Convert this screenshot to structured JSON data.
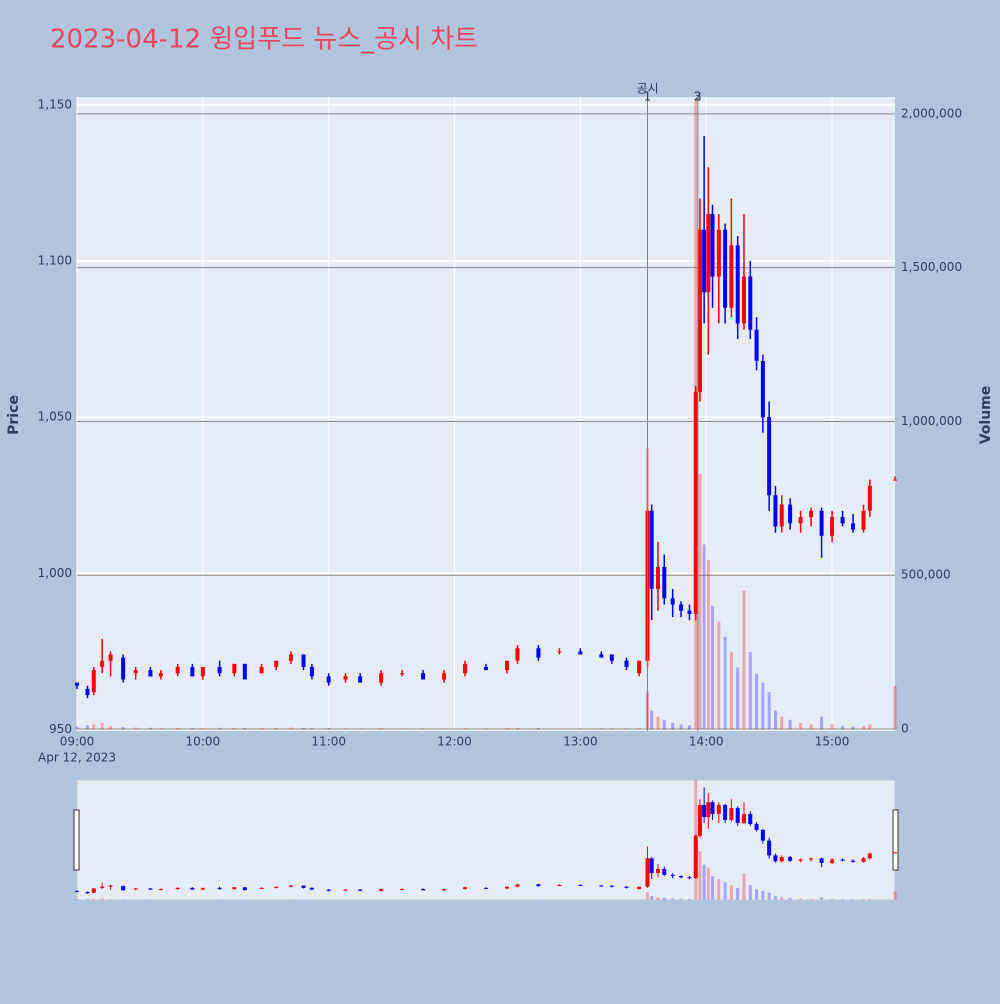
{
  "chart_data": {
    "type": "candlestick",
    "title": "2023-04-12 윙입푸드 뉴스_공시 차트",
    "y_label": "Price",
    "y2_label": "Volume",
    "x_date_label": "Apr 12, 2023",
    "increasing_color": "#ff0000",
    "decreasing_color": "#0000ff",
    "xlim": [
      "09:00",
      "15:30"
    ],
    "xticks": [
      "09:00",
      "10:00",
      "11:00",
      "12:00",
      "13:00",
      "14:00",
      "15:00"
    ],
    "ylim": [
      949.5,
      1152.5
    ],
    "yticks": [
      950,
      {
        "value": 1000,
        "label": "1,000"
      },
      {
        "value": 1050,
        "label": "1,050"
      },
      {
        "value": 1100,
        "label": "1,100"
      },
      {
        "value": 1150,
        "label": "1,150"
      }
    ],
    "y2lim": [
      -6500,
      2055000
    ],
    "y2ticks": [
      0,
      {
        "value": 500000,
        "label": "500,000"
      },
      {
        "value": 1000000,
        "label": "1,000,000"
      },
      {
        "value": 1500000,
        "label": "1,500,000"
      },
      {
        "value": 2000000,
        "label": "2,000,000"
      }
    ],
    "events": [
      {
        "x": "13:32",
        "label": "공시",
        "numbers": [
          "1"
        ]
      },
      {
        "x": "13:56",
        "numbers": [
          "2",
          "3"
        ]
      }
    ],
    "x": [
      "09:00",
      "09:05",
      "09:08",
      "09:12",
      "09:16",
      "09:22",
      "09:28",
      "09:35",
      "09:40",
      "09:48",
      "09:55",
      "10:00",
      "10:08",
      "10:15",
      "10:20",
      "10:28",
      "10:35",
      "10:42",
      "10:48",
      "10:52",
      "11:00",
      "11:08",
      "11:15",
      "11:25",
      "11:35",
      "11:45",
      "11:55",
      "12:05",
      "12:15",
      "12:25",
      "12:30",
      "12:40",
      "12:50",
      "13:00",
      "13:10",
      "13:15",
      "13:22",
      "13:28",
      "13:32",
      "13:34",
      "13:37",
      "13:40",
      "13:44",
      "13:48",
      "13:52",
      "13:55",
      "13:57",
      "13:59",
      "14:01",
      "14:03",
      "14:06",
      "14:09",
      "14:12",
      "14:15",
      "14:18",
      "14:21",
      "14:24",
      "14:27",
      "14:30",
      "14:33",
      "14:36",
      "14:40",
      "14:45",
      "14:50",
      "14:55",
      "15:00",
      "15:05",
      "15:10",
      "15:15",
      "15:18",
      "15:30"
    ],
    "open": [
      965,
      963,
      962,
      970,
      972,
      973,
      968,
      969,
      967,
      968,
      970,
      967,
      970,
      968,
      971,
      968,
      970,
      972,
      974,
      970,
      967,
      966,
      967,
      965,
      968,
      968,
      966,
      968,
      970,
      969,
      972,
      976,
      975,
      975,
      974,
      974,
      972,
      968,
      972,
      1020,
      995,
      1002,
      992,
      990,
      988,
      987,
      1058,
      1110,
      1090,
      1115,
      1095,
      1110,
      1085,
      1105,
      1080,
      1095,
      1078,
      1068,
      1050,
      1025,
      1015,
      1022,
      1016,
      1018,
      1020,
      1012,
      1018,
      1016,
      1014,
      1020,
      1030
    ],
    "high": [
      965,
      964,
      970,
      979,
      975,
      974,
      970,
      970,
      969,
      971,
      971,
      970,
      972,
      971,
      971,
      971,
      972,
      975,
      974,
      971,
      968,
      968,
      968,
      969,
      969,
      969,
      969,
      972,
      971,
      972,
      977,
      977,
      976,
      976,
      975,
      974,
      973,
      972,
      1040,
      1022,
      1010,
      1006,
      995,
      991,
      990,
      1060,
      1120,
      1140,
      1130,
      1118,
      1115,
      1112,
      1120,
      1108,
      1115,
      1100,
      1082,
      1070,
      1055,
      1028,
      1025,
      1024,
      1020,
      1021,
      1021,
      1020,
      1020,
      1019,
      1022,
      1030,
      1031
    ],
    "low": [
      963,
      960,
      961,
      968,
      967,
      965,
      966,
      967,
      966,
      967,
      967,
      966,
      967,
      967,
      966,
      968,
      969,
      971,
      969,
      966,
      964,
      965,
      965,
      964,
      967,
      966,
      965,
      967,
      969,
      968,
      971,
      972,
      974,
      974,
      973,
      971,
      969,
      967,
      970,
      985,
      988,
      990,
      986,
      986,
      985,
      985,
      1055,
      1080,
      1070,
      1085,
      1080,
      1080,
      1082,
      1075,
      1078,
      1075,
      1065,
      1045,
      1020,
      1013,
      1013,
      1014,
      1013,
      1015,
      1005,
      1010,
      1015,
      1013,
      1013,
      1018,
      1030
    ],
    "close": [
      964,
      961,
      969,
      972,
      974,
      966,
      969,
      967,
      968,
      970,
      967,
      970,
      968,
      971,
      966,
      970,
      972,
      974,
      970,
      967,
      965,
      967,
      965,
      968,
      968,
      966,
      968,
      971,
      969,
      972,
      976,
      973,
      975,
      974,
      973,
      972,
      970,
      972,
      1020,
      995,
      1002,
      992,
      990,
      988,
      987,
      1058,
      1110,
      1090,
      1115,
      1095,
      1110,
      1085,
      1105,
      1080,
      1095,
      1078,
      1068,
      1050,
      1025,
      1015,
      1022,
      1016,
      1018,
      1020,
      1012,
      1018,
      1016,
      1014,
      1020,
      1028,
      1030
    ],
    "volume": [
      8000,
      12000,
      15000,
      20000,
      10000,
      6000,
      5000,
      4000,
      3000,
      3000,
      3000,
      3000,
      4000,
      3000,
      3000,
      3000,
      3000,
      5000,
      4000,
      3000,
      3000,
      2000,
      2000,
      3000,
      2000,
      2000,
      2000,
      3000,
      2000,
      3000,
      4000,
      3000,
      2000,
      2000,
      2000,
      2000,
      2000,
      3000,
      120000,
      60000,
      40000,
      30000,
      20000,
      15000,
      12000,
      2050000,
      830000,
      600000,
      550000,
      400000,
      350000,
      300000,
      250000,
      200000,
      450000,
      250000,
      180000,
      150000,
      120000,
      60000,
      40000,
      30000,
      20000,
      15000,
      40000,
      15000,
      10000,
      8000,
      10000,
      15000,
      140000
    ]
  }
}
